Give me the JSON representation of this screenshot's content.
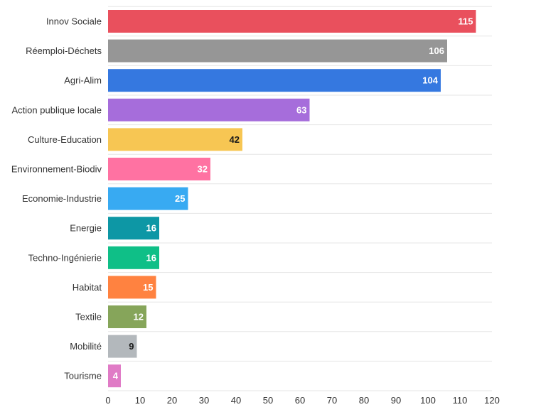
{
  "chart_data": {
    "type": "bar",
    "orientation": "horizontal",
    "title": "",
    "xlabel": "",
    "ylabel": "",
    "xlim": [
      0,
      120
    ],
    "x_ticks": [
      0,
      10,
      20,
      30,
      40,
      50,
      60,
      70,
      80,
      90,
      100,
      110,
      120
    ],
    "grid": true,
    "legend": "none",
    "categories": [
      "Innov Sociale",
      "Réemploi-Déchets",
      "Agri-Alim",
      "Action publique locale",
      "Culture-Education",
      "Environnement-Biodiv",
      "Economie-Industrie",
      "Energie",
      "Techno-Ingénierie",
      "Habitat",
      "Textile",
      "Mobilité",
      "Tourisme"
    ],
    "values": [
      115,
      106,
      104,
      63,
      42,
      32,
      25,
      16,
      16,
      15,
      12,
      9,
      4
    ],
    "colors": [
      "#e9505d",
      "#969696",
      "#3578e0",
      "#a66ddb",
      "#f7c653",
      "#ff72a2",
      "#38aaf2",
      "#0d97a5",
      "#0fbf87",
      "#ff8240",
      "#86a55a",
      "#b3b8bc",
      "#e07bc6"
    ],
    "label_colors": [
      "#ffffff",
      "#ffffff",
      "#ffffff",
      "#ffffff",
      "#1a1a1a",
      "#ffffff",
      "#ffffff",
      "#ffffff",
      "#ffffff",
      "#ffffff",
      "#ffffff",
      "#1a1a1a",
      "#ffffff"
    ]
  }
}
